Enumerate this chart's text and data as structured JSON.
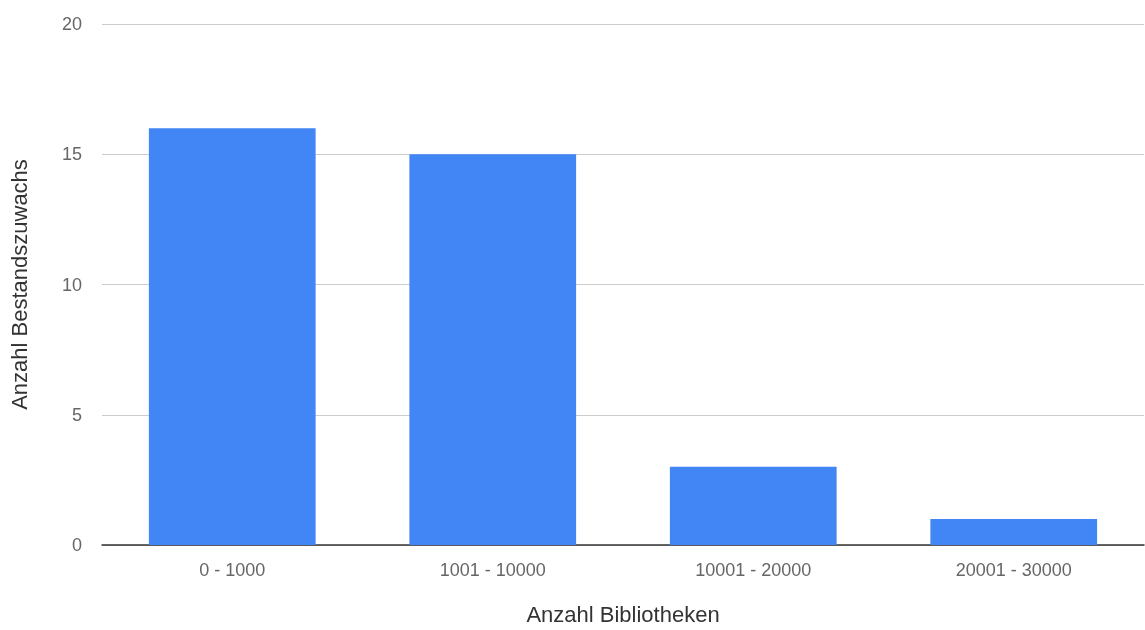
{
  "chart_data": {
    "type": "bar",
    "xlabel": "Anzahl Bibliotheken",
    "ylabel": "Anzahl Bestandszuwachs",
    "categories": [
      "0 - 1000",
      "1001 - 10000",
      "10001 - 20000",
      "20001 - 30000"
    ],
    "values": [
      16,
      15,
      3,
      1
    ],
    "color": "#4285f4",
    "ylim": [
      0,
      20
    ],
    "yticks": [
      0,
      5,
      10,
      15,
      20
    ],
    "grid": "y"
  }
}
